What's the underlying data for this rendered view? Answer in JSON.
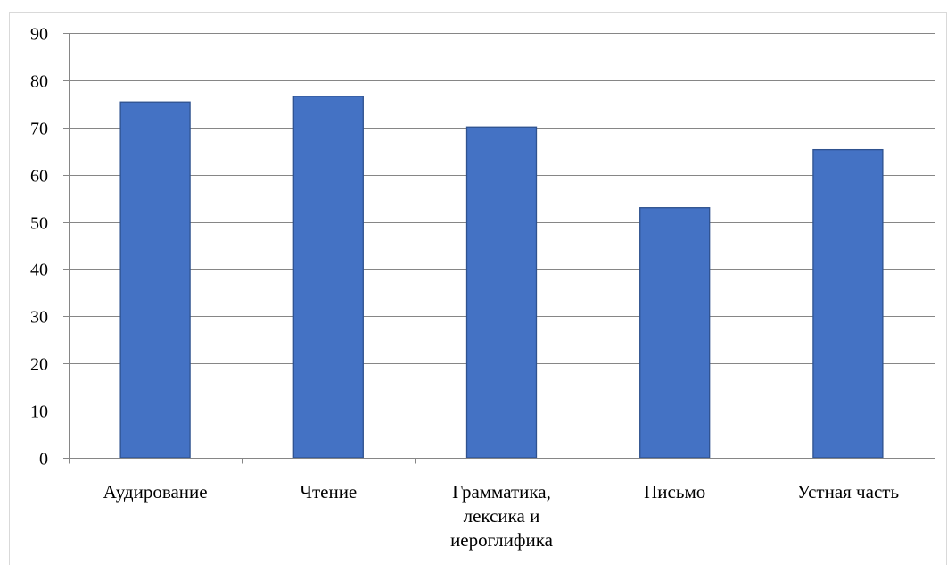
{
  "chart_data": {
    "type": "bar",
    "categories": [
      [
        "Аудирование"
      ],
      [
        "Чтение"
      ],
      [
        "Грамматика,",
        "лексика и",
        "иероглифика"
      ],
      [
        "Письмо"
      ],
      [
        "Устная часть"
      ]
    ],
    "values": [
      75.4,
      76.6,
      70.1,
      53.0,
      65.3
    ],
    "y_ticks": [
      "0",
      "10",
      "20",
      "30",
      "40",
      "50",
      "60",
      "70",
      "80",
      "90"
    ],
    "ylim": [
      0,
      90
    ],
    "grid": true,
    "legend": "none",
    "colors": {
      "bar_fill": "#4472C4",
      "bar_stroke": "#2F528F",
      "grid": "#868686",
      "axis": "#868686",
      "frame": "#D9D9D9"
    }
  }
}
